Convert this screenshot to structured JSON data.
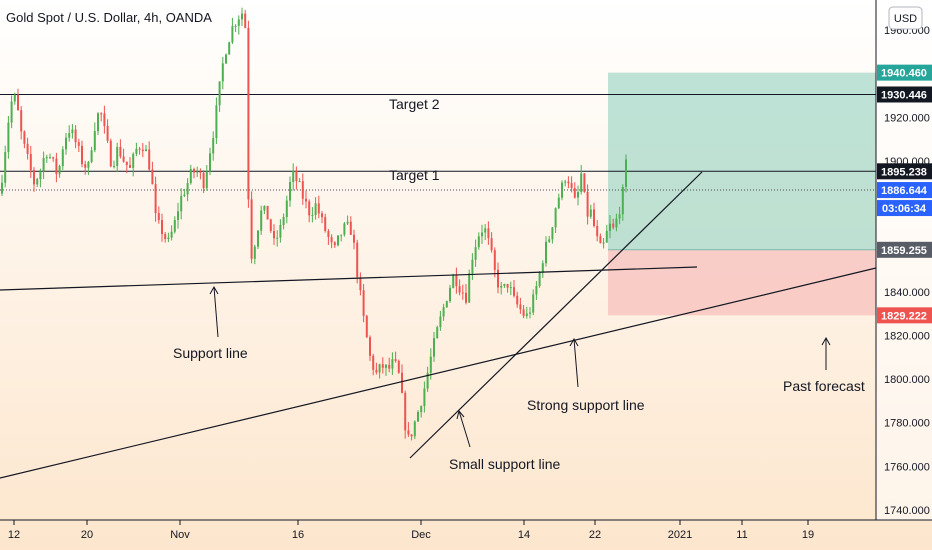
{
  "header": {
    "title": "Gold Spot / U.S. Dollar, 4h, OANDA",
    "currency_button": "USD"
  },
  "chart_data": {
    "type": "candlestick",
    "title": "Gold Spot / U.S. Dollar, 4h, OANDA",
    "ylim": [
      1740,
      1985
    ],
    "price_ticks": [
      1960,
      1940,
      1920,
      1900,
      1880,
      1860,
      1840,
      1820,
      1800,
      1780,
      1760,
      1740
    ],
    "price_tick_labels": [
      "1960.000",
      "1940.000",
      "1920.000",
      "1900.000",
      "1880.000",
      "1860.000",
      "1840.000",
      "1820.000",
      "1800.000",
      "1780.000",
      "1760.000",
      "1740.000"
    ],
    "time_ticks": [
      "12",
      "20",
      "Nov",
      "16",
      "Dec",
      "14",
      "22",
      "2021",
      "11",
      "19"
    ],
    "colors": {
      "up": "#26a69a",
      "up_body": "#4caf50",
      "down": "#ef5350",
      "profit_zone": "#a5d6c7",
      "loss_zone": "#f8c4c0",
      "bg_top": "#ffffff",
      "bg_bottom": "#fde7cf"
    },
    "horizontal_levels": [
      {
        "label": "Target 2",
        "price": 1930.446
      },
      {
        "label": "Target 1",
        "price": 1895.238
      }
    ],
    "position": {
      "entry": 1859.255,
      "take_profit": 1940.46,
      "stop_loss": 1829.222,
      "last_price": 1886.644
    },
    "price_badges": [
      {
        "text": "1940.460",
        "price": 1940.46,
        "color": "#26a69a"
      },
      {
        "text": "1930.446",
        "price": 1930.446,
        "color": "#131722"
      },
      {
        "text": "1895.238",
        "price": 1895.238,
        "color": "#131722"
      },
      {
        "text": "1886.644",
        "price": 1886.644,
        "color": "#2962ff"
      },
      {
        "text": "1859.255",
        "price": 1859.255,
        "color": "#575c66"
      },
      {
        "text": "1829.222",
        "price": 1829.222,
        "color": "#ef5350"
      }
    ],
    "countdown": "03:06:34",
    "annotations": [
      "Target 2",
      "Target 1",
      "Support line",
      "Small support line",
      "Strong support line",
      "Past forecast"
    ],
    "price_path": [
      [
        0,
        1885
      ],
      [
        5,
        1905
      ],
      [
        10,
        1925
      ],
      [
        14,
        1930
      ],
      [
        18,
        1922
      ],
      [
        22,
        1910
      ],
      [
        28,
        1900
      ],
      [
        34,
        1890
      ],
      [
        40,
        1895
      ],
      [
        46,
        1905
      ],
      [
        52,
        1900
      ],
      [
        58,
        1893
      ],
      [
        64,
        1910
      ],
      [
        70,
        1915
      ],
      [
        76,
        1908
      ],
      [
        82,
        1900
      ],
      [
        88,
        1896
      ],
      [
        94,
        1915
      ],
      [
        100,
        1924
      ],
      [
        106,
        1910
      ],
      [
        112,
        1898
      ],
      [
        118,
        1906
      ],
      [
        124,
        1900
      ],
      [
        130,
        1896
      ],
      [
        136,
        1905
      ],
      [
        142,
        1908
      ],
      [
        148,
        1902
      ],
      [
        152,
        1890
      ],
      [
        156,
        1872
      ],
      [
        162,
        1868
      ],
      [
        168,
        1862
      ],
      [
        174,
        1870
      ],
      [
        180,
        1882
      ],
      [
        186,
        1888
      ],
      [
        192,
        1895
      ],
      [
        198,
        1895
      ],
      [
        204,
        1890
      ],
      [
        208,
        1900
      ],
      [
        214,
        1915
      ],
      [
        220,
        1935
      ],
      [
        224,
        1948
      ],
      [
        228,
        1955
      ],
      [
        233,
        1962
      ],
      [
        238,
        1966
      ],
      [
        242,
        1968
      ],
      [
        246,
        1960
      ],
      [
        249,
        1865
      ],
      [
        252,
        1856
      ],
      [
        256,
        1866
      ],
      [
        262,
        1878
      ],
      [
        268,
        1874
      ],
      [
        274,
        1862
      ],
      [
        280,
        1868
      ],
      [
        286,
        1880
      ],
      [
        292,
        1894
      ],
      [
        298,
        1890
      ],
      [
        304,
        1882
      ],
      [
        310,
        1876
      ],
      [
        316,
        1880
      ],
      [
        322,
        1872
      ],
      [
        328,
        1865
      ],
      [
        334,
        1858
      ],
      [
        340,
        1866
      ],
      [
        346,
        1870
      ],
      [
        352,
        1868
      ],
      [
        358,
        1846
      ],
      [
        364,
        1826
      ],
      [
        370,
        1810
      ],
      [
        376,
        1802
      ],
      [
        382,
        1806
      ],
      [
        388,
        1804
      ],
      [
        394,
        1808
      ],
      [
        400,
        1800
      ],
      [
        404,
        1782
      ],
      [
        408,
        1772
      ],
      [
        412,
        1776
      ],
      [
        418,
        1785
      ],
      [
        424,
        1795
      ],
      [
        430,
        1808
      ],
      [
        436,
        1820
      ],
      [
        442,
        1830
      ],
      [
        448,
        1840
      ],
      [
        454,
        1848
      ],
      [
        460,
        1842
      ],
      [
        466,
        1838
      ],
      [
        472,
        1856
      ],
      [
        478,
        1866
      ],
      [
        484,
        1870
      ],
      [
        490,
        1860
      ],
      [
        496,
        1846
      ],
      [
        502,
        1840
      ],
      [
        508,
        1844
      ],
      [
        514,
        1836
      ],
      [
        520,
        1832
      ],
      [
        526,
        1828
      ],
      [
        532,
        1834
      ],
      [
        538,
        1845
      ],
      [
        544,
        1858
      ],
      [
        550,
        1866
      ],
      [
        556,
        1880
      ],
      [
        562,
        1888
      ],
      [
        566,
        1894
      ],
      [
        570,
        1890
      ],
      [
        574,
        1880
      ],
      [
        578,
        1885
      ],
      [
        582,
        1896
      ],
      [
        586,
        1874
      ],
      [
        590,
        1878
      ],
      [
        594,
        1870
      ],
      [
        598,
        1862
      ],
      [
        602,
        1858
      ],
      [
        606,
        1866
      ],
      [
        610,
        1870
      ],
      [
        614,
        1868
      ],
      [
        618,
        1876
      ],
      [
        622,
        1882
      ],
      [
        626,
        1898
      ],
      [
        629,
        1886
      ]
    ]
  }
}
